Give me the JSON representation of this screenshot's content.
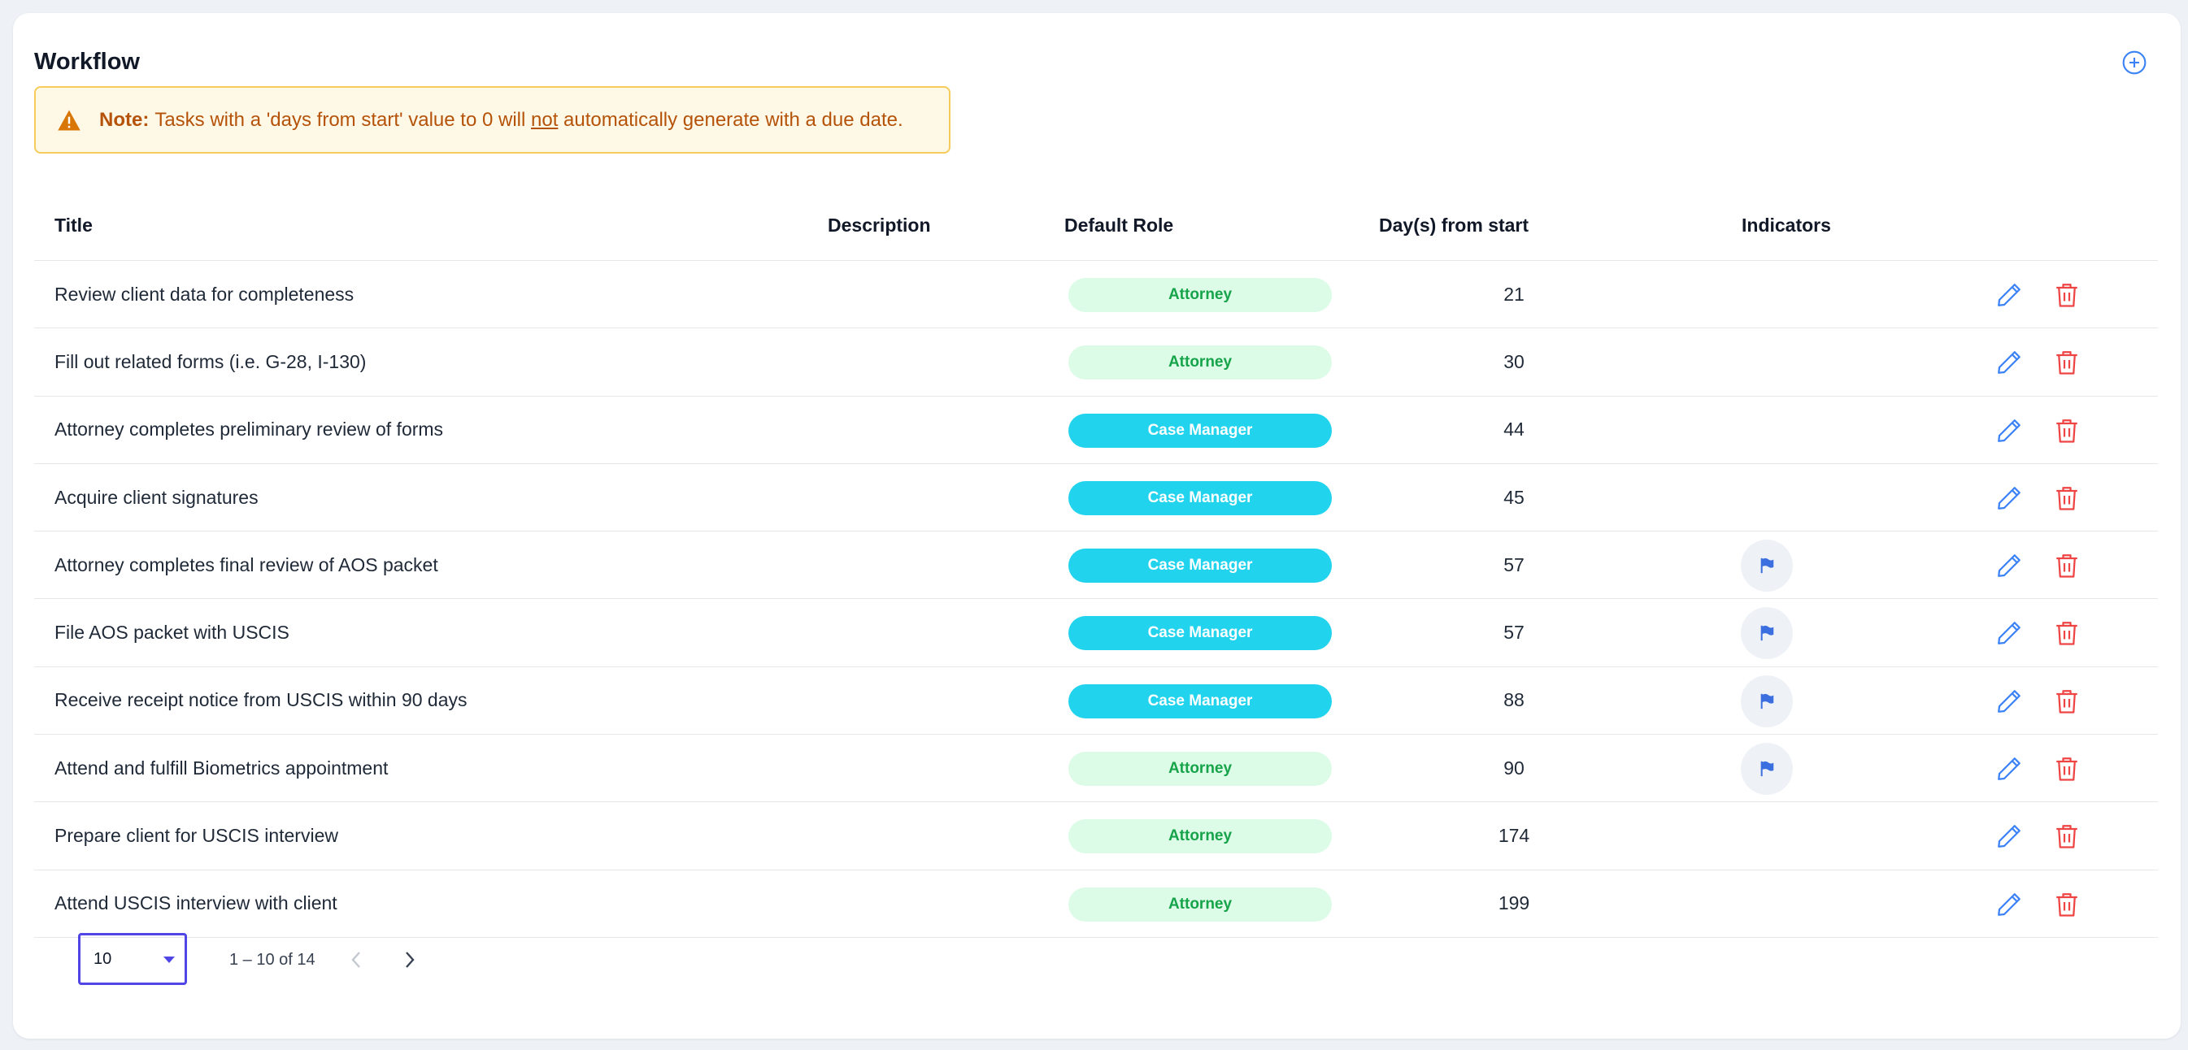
{
  "page": {
    "title": "Workflow",
    "add_icon": "plus-circle-icon"
  },
  "note": {
    "icon": "warning-triangle-icon",
    "label": "Note:",
    "text_before": "Tasks with a 'days from start' value to 0 will",
    "text_underlined": "not",
    "text_after": "automatically generate with a due date."
  },
  "table": {
    "columns": [
      "Title",
      "Description",
      "Default Role",
      "Day(s) from start",
      "Indicators"
    ],
    "rows": [
      {
        "title": "Review client data for completeness",
        "description": "",
        "role": "Attorney",
        "days": "21",
        "flag": false
      },
      {
        "title": "Fill out related forms (i.e. G-28, I-130)",
        "description": "",
        "role": "Attorney",
        "days": "30",
        "flag": false
      },
      {
        "title": "Attorney completes preliminary review of forms",
        "description": "",
        "role": "Case Manager",
        "days": "44",
        "flag": false
      },
      {
        "title": "Acquire client signatures",
        "description": "",
        "role": "Case Manager",
        "days": "45",
        "flag": false
      },
      {
        "title": "Attorney completes final review of AOS packet",
        "description": "",
        "role": "Case Manager",
        "days": "57",
        "flag": true
      },
      {
        "title": "File AOS packet with USCIS",
        "description": "",
        "role": "Case Manager",
        "days": "57",
        "flag": true
      },
      {
        "title": "Receive receipt notice from USCIS within 90 days",
        "description": "",
        "role": "Case Manager",
        "days": "88",
        "flag": true
      },
      {
        "title": "Attend and fulfill Biometrics appointment",
        "description": "",
        "role": "Attorney",
        "days": "90",
        "flag": true
      },
      {
        "title": "Prepare client for USCIS interview",
        "description": "",
        "role": "Attorney",
        "days": "174",
        "flag": false
      },
      {
        "title": "Attend USCIS interview with client",
        "description": "",
        "role": "Attorney",
        "days": "199",
        "flag": false
      }
    ],
    "row_icons": {
      "edit": "pencil-icon",
      "delete": "trash-icon",
      "indicator": "flag-icon"
    }
  },
  "pagination": {
    "page_size": "10",
    "range": "1 – 10 of 14",
    "prev_icon": "chevron-left-icon",
    "next_icon": "chevron-right-icon"
  },
  "colors": {
    "accent": "#3b82f6",
    "attorney_bg": "#dcfce7",
    "attorney_text": "#16a34a",
    "case_manager_bg": "#22d3ee",
    "delete": "#ef4444",
    "note_bg": "#fef8e7",
    "note_border": "#f5cc5c",
    "note_text": "#b45309"
  }
}
